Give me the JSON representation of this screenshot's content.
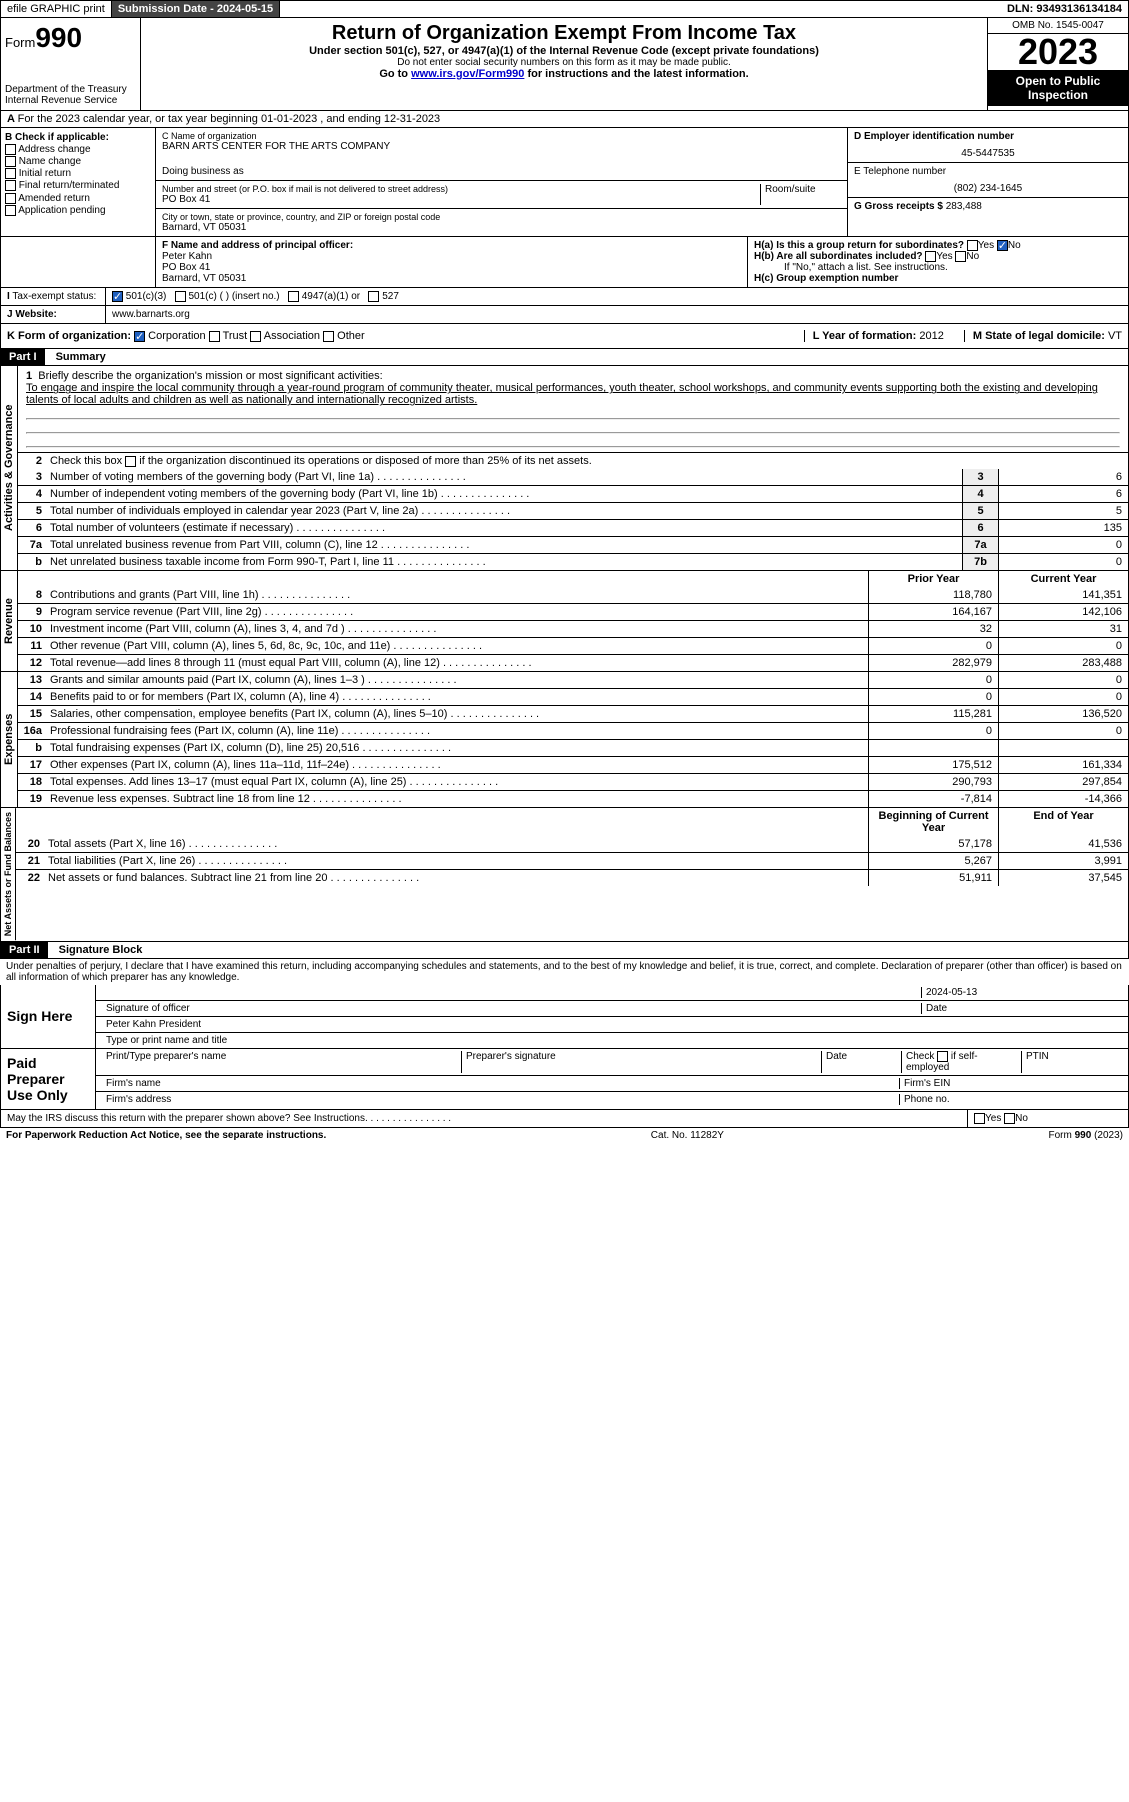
{
  "topbar": {
    "efile": "efile GRAPHIC print",
    "submission_label": "Submission Date - 2024-05-15",
    "dln": "DLN: 93493136134184"
  },
  "header": {
    "form_label": "Form",
    "form_number": "990",
    "dept": "Department of the Treasury",
    "irs": "Internal Revenue Service",
    "title": "Return of Organization Exempt From Income Tax",
    "subtitle": "Under section 501(c), 527, or 4947(a)(1) of the Internal Revenue Code (except private foundations)",
    "ssn_note": "Do not enter social security numbers on this form as it may be made public.",
    "goto": "Go to www.irs.gov/Form990 for instructions and the latest information.",
    "omb": "OMB No. 1545-0047",
    "year": "2023",
    "open": "Open to Public Inspection"
  },
  "section_a": "For the 2023 calendar year, or tax year beginning 01-01-2023   , and ending 12-31-2023",
  "col_b": {
    "label": "B Check if applicable:",
    "items": [
      "Address change",
      "Name change",
      "Initial return",
      "Final return/terminated",
      "Amended return",
      "Application pending"
    ]
  },
  "col_c": {
    "name_label": "C Name of organization",
    "name": "BARN ARTS CENTER FOR THE ARTS COMPANY",
    "dba_label": "Doing business as",
    "addr_label": "Number and street (or P.O. box if mail is not delivered to street address)",
    "room_label": "Room/suite",
    "addr": "PO Box 41",
    "city_label": "City or town, state or province, country, and ZIP or foreign postal code",
    "city": "Barnard, VT  05031"
  },
  "col_d": {
    "ein_label": "D Employer identification number",
    "ein": "45-5447535",
    "phone_label": "E Telephone number",
    "phone": "(802) 234-1645",
    "gross_label": "G Gross receipts $",
    "gross": "283,488"
  },
  "row_f": {
    "label": "F  Name and address of principal officer:",
    "name": "Peter Kahn",
    "addr1": "PO Box 41",
    "addr2": "Barnard, VT  05031"
  },
  "row_h": {
    "ha": "H(a)  Is this a group return for subordinates?",
    "hb": "H(b)  Are all subordinates included?",
    "hb_note": "If \"No,\" attach a list. See instructions.",
    "hc": "H(c)  Group exemption number"
  },
  "row_i": {
    "label": "Tax-exempt status:",
    "opts": [
      "501(c)(3)",
      "501(c) (  ) (insert no.)",
      "4947(a)(1) or",
      "527"
    ]
  },
  "row_j": {
    "label": "Website:",
    "value": "www.barnarts.org"
  },
  "row_k": {
    "label": "K Form of organization:",
    "opts": [
      "Corporation",
      "Trust",
      "Association",
      "Other"
    ]
  },
  "row_l": {
    "label": "L Year of formation:",
    "value": "2012"
  },
  "row_m": {
    "label": "M State of legal domicile:",
    "value": "VT"
  },
  "part1": {
    "hdr": "Part I",
    "title": "Summary",
    "tabs": {
      "gov": "Activities & Governance",
      "rev": "Revenue",
      "exp": "Expenses",
      "net": "Net Assets or Fund Balances"
    },
    "line1_label": "Briefly describe the organization's mission or most significant activities:",
    "mission": "To engage and inspire the local community through a year-round program of community theater, musical performances, youth theater, school workshops, and community events supporting both the existing and developing talents of local adults and children as well as nationally and internationally recognized artists.",
    "line2": "Check this box      if the organization discontinued its operations or disposed of more than 25% of its net assets.",
    "rows_gov": [
      {
        "n": "3",
        "d": "Number of voting members of the governing body (Part VI, line 1a)",
        "b": "3",
        "v": "6"
      },
      {
        "n": "4",
        "d": "Number of independent voting members of the governing body (Part VI, line 1b)",
        "b": "4",
        "v": "6"
      },
      {
        "n": "5",
        "d": "Total number of individuals employed in calendar year 2023 (Part V, line 2a)",
        "b": "5",
        "v": "5"
      },
      {
        "n": "6",
        "d": "Total number of volunteers (estimate if necessary)",
        "b": "6",
        "v": "135"
      },
      {
        "n": "7a",
        "d": "Total unrelated business revenue from Part VIII, column (C), line 12",
        "b": "7a",
        "v": "0"
      },
      {
        "n": "b",
        "d": "Net unrelated business taxable income from Form 990-T, Part I, line 11",
        "b": "7b",
        "v": "0"
      }
    ],
    "col_hdr": {
      "prior": "Prior Year",
      "current": "Current Year",
      "boc": "Beginning of Current Year",
      "eoy": "End of Year"
    },
    "rows_rev": [
      {
        "n": "8",
        "d": "Contributions and grants (Part VIII, line 1h)",
        "p": "118,780",
        "c": "141,351"
      },
      {
        "n": "9",
        "d": "Program service revenue (Part VIII, line 2g)",
        "p": "164,167",
        "c": "142,106"
      },
      {
        "n": "10",
        "d": "Investment income (Part VIII, column (A), lines 3, 4, and 7d )",
        "p": "32",
        "c": "31"
      },
      {
        "n": "11",
        "d": "Other revenue (Part VIII, column (A), lines 5, 6d, 8c, 9c, 10c, and 11e)",
        "p": "0",
        "c": "0"
      },
      {
        "n": "12",
        "d": "Total revenue—add lines 8 through 11 (must equal Part VIII, column (A), line 12)",
        "p": "282,979",
        "c": "283,488"
      }
    ],
    "rows_exp": [
      {
        "n": "13",
        "d": "Grants and similar amounts paid (Part IX, column (A), lines 1–3 )",
        "p": "0",
        "c": "0"
      },
      {
        "n": "14",
        "d": "Benefits paid to or for members (Part IX, column (A), line 4)",
        "p": "0",
        "c": "0"
      },
      {
        "n": "15",
        "d": "Salaries, other compensation, employee benefits (Part IX, column (A), lines 5–10)",
        "p": "115,281",
        "c": "136,520"
      },
      {
        "n": "16a",
        "d": "Professional fundraising fees (Part IX, column (A), line 11e)",
        "p": "0",
        "c": "0"
      },
      {
        "n": "b",
        "d": "Total fundraising expenses (Part IX, column (D), line 25) 20,516",
        "p": "",
        "c": ""
      },
      {
        "n": "17",
        "d": "Other expenses (Part IX, column (A), lines 11a–11d, 11f–24e)",
        "p": "175,512",
        "c": "161,334"
      },
      {
        "n": "18",
        "d": "Total expenses. Add lines 13–17 (must equal Part IX, column (A), line 25)",
        "p": "290,793",
        "c": "297,854"
      },
      {
        "n": "19",
        "d": "Revenue less expenses. Subtract line 18 from line 12",
        "p": "-7,814",
        "c": "-14,366"
      }
    ],
    "rows_net": [
      {
        "n": "20",
        "d": "Total assets (Part X, line 16)",
        "p": "57,178",
        "c": "41,536"
      },
      {
        "n": "21",
        "d": "Total liabilities (Part X, line 26)",
        "p": "5,267",
        "c": "3,991"
      },
      {
        "n": "22",
        "d": "Net assets or fund balances. Subtract line 21 from line 20",
        "p": "51,911",
        "c": "37,545"
      }
    ]
  },
  "part2": {
    "hdr": "Part II",
    "title": "Signature Block",
    "perjury": "Under penalties of perjury, I declare that I have examined this return, including accompanying schedules and statements, and to the best of my knowledge and belief, it is true, correct, and complete. Declaration of preparer (other than officer) is based on all information of which preparer has any knowledge.",
    "sign_here": "Sign Here",
    "sig_officer": "Signature of officer",
    "sig_date": "2024-05-13",
    "date_label": "Date",
    "officer_name": "Peter Kahn President",
    "type_label": "Type or print name and title",
    "paid": "Paid Preparer Use Only",
    "prep_name": "Print/Type preparer's name",
    "prep_sig": "Preparer's signature",
    "prep_date": "Date",
    "check_self": "Check       if self-employed",
    "ptin": "PTIN",
    "firm_name": "Firm's name",
    "firm_ein": "Firm's EIN",
    "firm_addr": "Firm's address",
    "firm_phone": "Phone no.",
    "discuss": "May the IRS discuss this return with the preparer shown above? See Instructions."
  },
  "footer": {
    "left": "For Paperwork Reduction Act Notice, see the separate instructions.",
    "mid": "Cat. No. 11282Y",
    "right": "Form 990 (2023)"
  }
}
